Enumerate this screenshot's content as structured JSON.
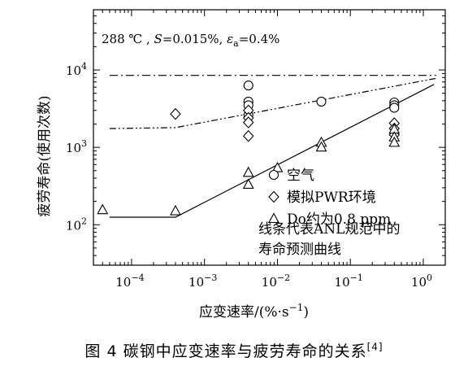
{
  "chart_data": {
    "type": "scatter",
    "title": "288 ℃ , S=0.015%, εa=0.4%",
    "xlabel": "应变速率/(%·s⁻¹)",
    "ylabel": "疲劳寿命(使用次数)",
    "xscale": "log",
    "yscale": "log",
    "xlim": [
      3e-05,
      2.0
    ],
    "ylim": [
      30,
      60000
    ],
    "x_tick_values": [
      0.0001,
      0.001,
      0.01,
      0.1,
      1
    ],
    "x_tick_labels": [
      "10⁻⁴",
      "10⁻³",
      "10⁻²",
      "10⁻¹",
      "10⁰"
    ],
    "y_tick_values": [
      100,
      1000,
      10000
    ],
    "y_tick_labels": [
      "10²",
      "10³",
      "10⁴"
    ],
    "grid": false,
    "legend_position": "bottom-right",
    "series": [
      {
        "name": "空气",
        "marker": "circle",
        "points": [
          [
            0.004,
            6300
          ],
          [
            0.004,
            3900
          ],
          [
            0.004,
            3500
          ],
          [
            0.004,
            2600
          ],
          [
            0.04,
            3900
          ],
          [
            0.4,
            3800
          ],
          [
            0.4,
            3500
          ],
          [
            0.4,
            3250
          ]
        ]
      },
      {
        "name": "模拟PWR环境",
        "marker": "diamond",
        "points": [
          [
            0.0004,
            2700
          ],
          [
            0.004,
            3000
          ],
          [
            0.004,
            2400
          ],
          [
            0.004,
            2100
          ],
          [
            0.004,
            1400
          ],
          [
            0.4,
            2050
          ],
          [
            0.4,
            1750
          ],
          [
            0.4,
            1450
          ]
        ]
      },
      {
        "name": "Do约为0.8 ppm",
        "marker": "triangle",
        "points": [
          [
            4e-05,
            155
          ],
          [
            0.0004,
            150
          ],
          [
            0.004,
            470
          ],
          [
            0.004,
            330
          ],
          [
            0.01,
            540
          ],
          [
            0.04,
            1150
          ],
          [
            0.04,
            1000
          ],
          [
            0.4,
            1700
          ],
          [
            0.4,
            1350
          ],
          [
            0.4,
            1150
          ]
        ]
      }
    ],
    "lines": [
      {
        "name": "air",
        "style": "dash-dot",
        "points": [
          [
            5e-05,
            8500
          ],
          [
            1.5,
            8500
          ]
        ]
      },
      {
        "name": "pwr",
        "style": "dash-dot-dot",
        "points": [
          [
            5e-05,
            1750
          ],
          [
            0.0004,
            1800
          ],
          [
            1.5,
            7800
          ]
        ]
      },
      {
        "name": "low-do",
        "style": "solid",
        "points": [
          [
            5e-05,
            125
          ],
          [
            0.0004,
            125
          ],
          [
            1.4,
            6500
          ]
        ]
      }
    ],
    "annotation": "线条代表ANL规范中的寿命预测曲线"
  },
  "caption": {
    "text": "图 4    碳钢中应变速率与疲劳寿命的关系",
    "ref": "[4]"
  }
}
